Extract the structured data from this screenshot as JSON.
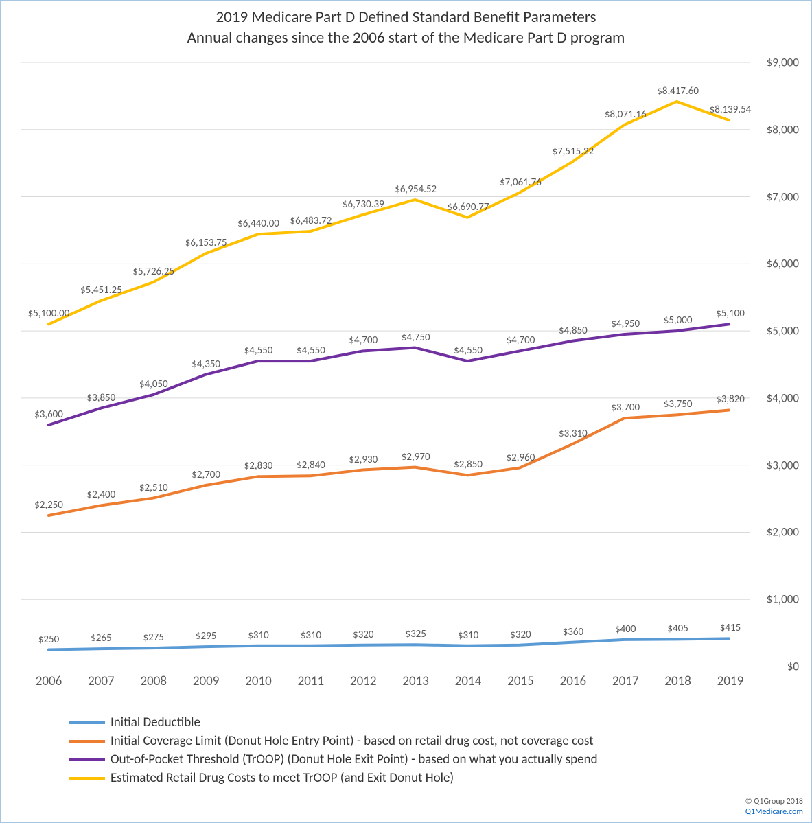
{
  "title_line1": "2019 Medicare Part D Defined Standard Benefit Parameters",
  "title_line2": "Annual changes since the 2006 start of the Medicare Part D program",
  "title_fontsize": 23,
  "title_color": "#333333",
  "chart": {
    "type": "line",
    "background_color": "#ffffff",
    "border_color": "#a8c6df",
    "grid_color": "#d9d9d9",
    "font_family": "Calibri, Arial, sans-serif",
    "axis_label_color": "#595959",
    "data_label_color": "#595959",
    "axis_label_fontsize_x": 19,
    "axis_label_fontsize_y": 17,
    "data_label_fontsize": 15,
    "line_width": 4,
    "ylim": [
      0,
      9000
    ],
    "ytick_step": 1000,
    "ytick_labels": [
      "$0",
      "$1,000",
      "$2,000",
      "$3,000",
      "$4,000",
      "$5,000",
      "$6,000",
      "$7,000",
      "$8,000",
      "$9,000"
    ],
    "categories": [
      "2006",
      "2007",
      "2008",
      "2009",
      "2010",
      "2011",
      "2012",
      "2013",
      "2014",
      "2015",
      "2016",
      "2017",
      "2018",
      "2019"
    ],
    "series": [
      {
        "id": "initial_deductible",
        "name": "Initial Deductible",
        "color": "#5b9bd5",
        "values": [
          250,
          265,
          275,
          295,
          310,
          310,
          320,
          325,
          310,
          320,
          360,
          400,
          405,
          415
        ],
        "labels": [
          "$250",
          "$265",
          "$275",
          "$295",
          "$310",
          "$310",
          "$320",
          "$325",
          "$310",
          "$320",
          "$360",
          "$400",
          "$405",
          "$415"
        ]
      },
      {
        "id": "initial_coverage_limit",
        "name": "Initial Coverage Limit (Donut Hole Entry Point) - based on retail drug cost, not coverage cost",
        "color": "#ed7d31",
        "values": [
          2250,
          2400,
          2510,
          2700,
          2830,
          2840,
          2930,
          2970,
          2850,
          2960,
          3310,
          3700,
          3750,
          3820
        ],
        "labels": [
          "$2,250",
          "$2,400",
          "$2,510",
          "$2,700",
          "$2,830",
          "$2,840",
          "$2,930",
          "$2,970",
          "$2,850",
          "$2,960",
          "$3,310",
          "$3,700",
          "$3,750",
          "$3,820"
        ]
      },
      {
        "id": "out_of_pocket_threshold",
        "name": "Out-of-Pocket Threshold (TrOOP) (Donut Hole Exit Point) - based on what you actually spend",
        "color": "#7030a0",
        "values": [
          3600,
          3850,
          4050,
          4350,
          4550,
          4550,
          4700,
          4750,
          4550,
          4700,
          4850,
          4950,
          5000,
          5100
        ],
        "labels": [
          "$3,600",
          "$3,850",
          "$4,050",
          "$4,350",
          "$4,550",
          "$4,550",
          "$4,700",
          "$4,750",
          "$4,550",
          "$4,700",
          "$4,850",
          "$4,950",
          "$5,000",
          "$5,100"
        ]
      },
      {
        "id": "estimated_retail_costs",
        "name": "Estimated Retail Drug Costs to meet TrOOP (and Exit Donut Hole)",
        "color": "#ffc000",
        "values": [
          5100.0,
          5451.25,
          5726.25,
          6153.75,
          6440.0,
          6483.72,
          6730.39,
          6954.52,
          6690.77,
          7061.76,
          7515.22,
          8071.16,
          8417.6,
          8139.54
        ],
        "labels": [
          "$5,100.00",
          "$5,451.25",
          "$5,726.25",
          "$6,153.75",
          "$6,440.00",
          "$6,483.72",
          "$6,730.39",
          "$6,954.52",
          "$6,690.77",
          "$7,061.76",
          "$7,515.22",
          "$8,071.16",
          "$8,417.60",
          "$8,139.54"
        ]
      }
    ]
  },
  "attribution": {
    "copyright": "© Q1Group 2018",
    "link_text": "Q1Medicare.com"
  }
}
